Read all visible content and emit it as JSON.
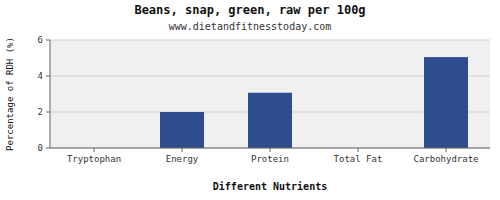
{
  "chart_data": {
    "type": "bar",
    "title": "Beans, snap, green, raw per 100g",
    "subtitle": "www.dietandfitnesstoday.com",
    "xlabel": "Different Nutrients",
    "ylabel": "Percentage of RDH (%)",
    "categories": [
      "Tryptophan",
      "Energy",
      "Protein",
      "Total Fat",
      "Carbohydrate"
    ],
    "values": [
      0.0,
      2.0,
      3.07,
      0.0,
      5.05
    ],
    "color": "#2d4d8e",
    "ylim": [
      0,
      6
    ],
    "yticks": [
      0,
      2,
      4,
      6
    ],
    "grid": true
  }
}
